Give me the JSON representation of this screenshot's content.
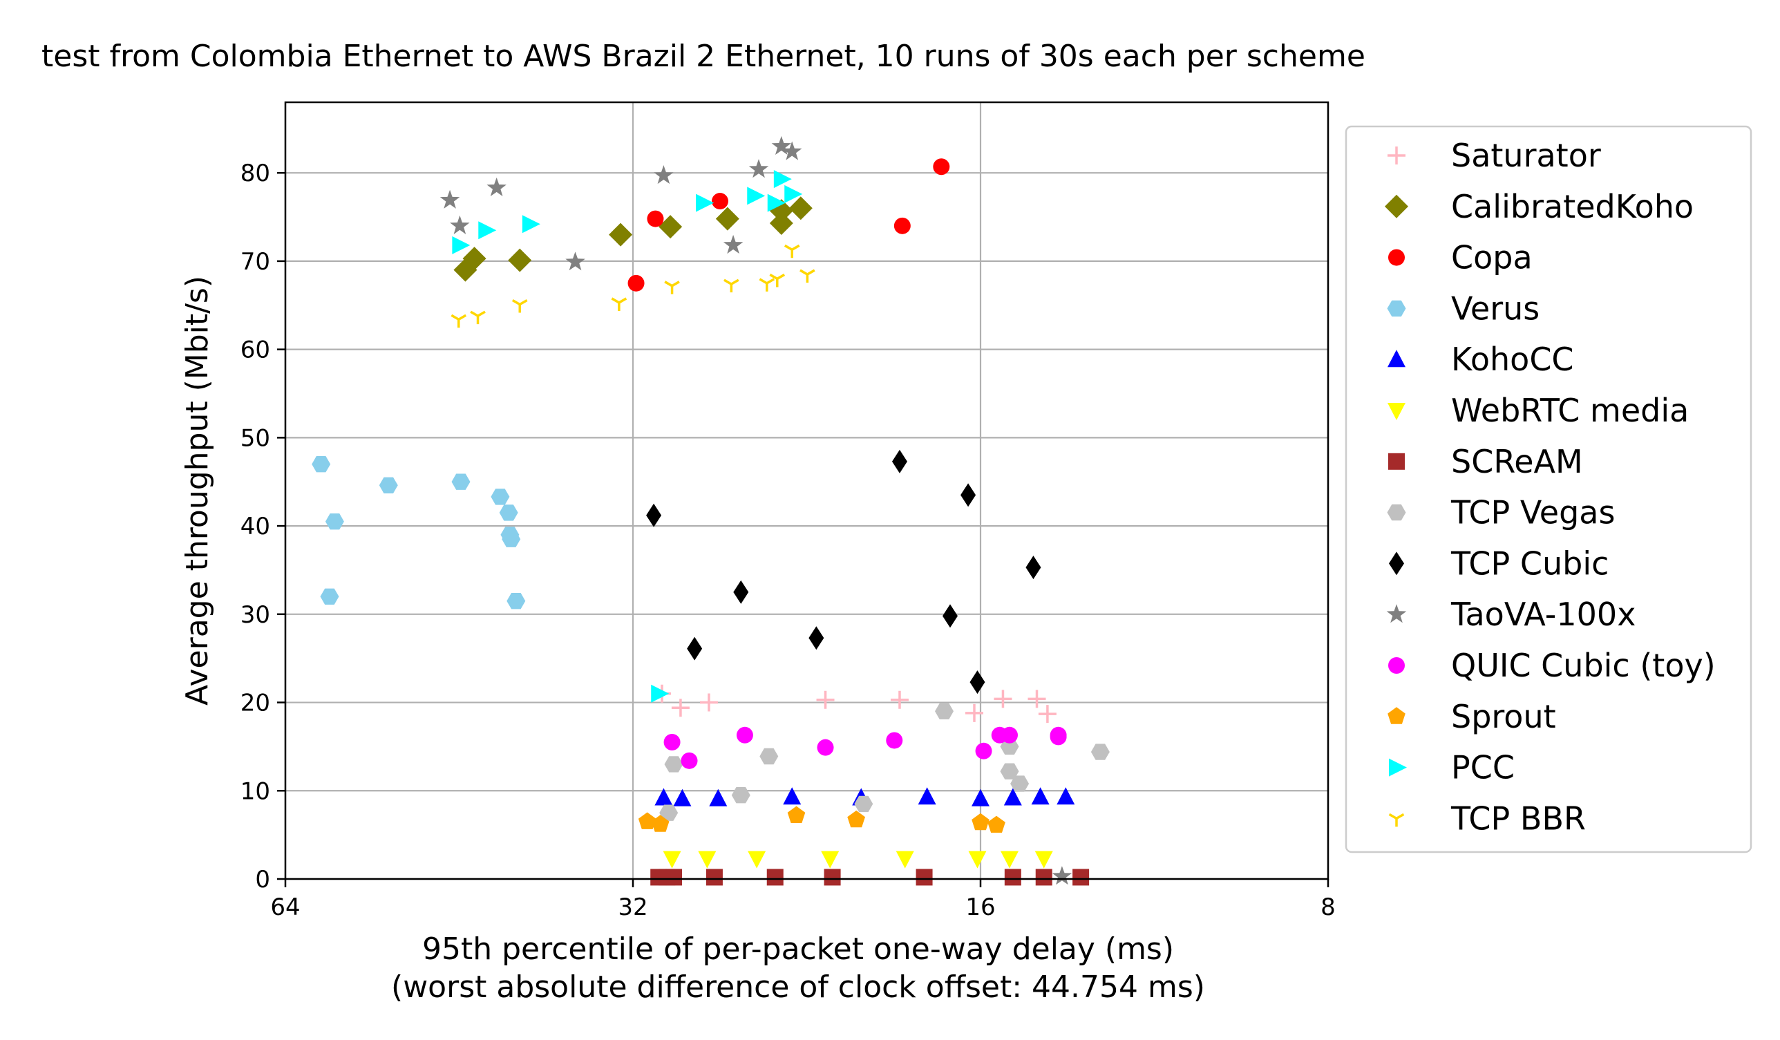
{
  "chart_data": {
    "type": "scatter",
    "title": "test from Colombia Ethernet to AWS Brazil 2 Ethernet, 10 runs of 30s each per scheme",
    "xlabel": "95th percentile of per-packet one-way delay (ms)",
    "xlabel_sub": "(worst absolute difference of clock offset: 44.754 ms)",
    "ylabel": "Average throughput (Mbit/s)",
    "x_scale": "log2",
    "x_inverted": true,
    "xlim": [
      64,
      8
    ],
    "ylim": [
      0,
      88
    ],
    "x_ticks": [
      64,
      32,
      16,
      8
    ],
    "y_ticks": [
      0,
      10,
      20,
      30,
      40,
      50,
      60,
      70,
      80
    ],
    "grid": true,
    "legend_position": "outside-right",
    "series": [
      {
        "name": "Saturator",
        "marker": "plus",
        "color": "#ffb6c1",
        "points": [
          [
            30.2,
            21
          ],
          [
            29.1,
            19.4
          ],
          [
            27.5,
            20
          ],
          [
            21.8,
            20.3
          ],
          [
            18.8,
            20.3
          ],
          [
            16.2,
            18.8
          ],
          [
            15.3,
            20.4
          ],
          [
            14.3,
            20.4
          ],
          [
            14.0,
            18.7
          ]
        ]
      },
      {
        "name": "CalibratedKoho",
        "marker": "diamond",
        "color": "#808000",
        "points": [
          [
            44.7,
            69
          ],
          [
            43.9,
            70.3
          ],
          [
            40.1,
            70.1
          ],
          [
            32.8,
            73
          ],
          [
            29.7,
            73.9
          ],
          [
            26.5,
            74.8
          ],
          [
            23.8,
            74.3
          ],
          [
            23.8,
            75.7
          ],
          [
            22.9,
            76
          ]
        ]
      },
      {
        "name": "Copa",
        "marker": "circle",
        "color": "#ff0000",
        "points": [
          [
            31.8,
            67.5
          ],
          [
            30.6,
            74.8
          ],
          [
            26.9,
            76.8
          ],
          [
            17.3,
            80.7
          ],
          [
            18.7,
            74
          ]
        ]
      },
      {
        "name": "Verus",
        "marker": "hexagon",
        "color": "#87ceeb",
        "points": [
          [
            59.6,
            47
          ],
          [
            58.0,
            40.5
          ],
          [
            58.6,
            32
          ],
          [
            52.1,
            44.6
          ],
          [
            45.1,
            45
          ],
          [
            41.7,
            43.3
          ],
          [
            41.0,
            41.5
          ],
          [
            40.9,
            39
          ],
          [
            40.8,
            38.5
          ],
          [
            40.4,
            31.5
          ]
        ]
      },
      {
        "name": "KohoCC",
        "marker": "triangle-up",
        "color": "#0000ff",
        "points": [
          [
            30.1,
            9.2
          ],
          [
            29.0,
            9.1
          ],
          [
            27.0,
            9.1
          ],
          [
            23.3,
            9.3
          ],
          [
            20.3,
            9.2
          ],
          [
            17.8,
            9.3
          ],
          [
            16.0,
            9.1
          ],
          [
            15.0,
            9.2
          ],
          [
            14.2,
            9.3
          ],
          [
            13.5,
            9.3
          ]
        ]
      },
      {
        "name": "WebRTC media",
        "marker": "triangle-down",
        "color": "#ffff00",
        "points": [
          [
            29.6,
            2.3
          ],
          [
            27.6,
            2.3
          ],
          [
            25.0,
            2.3
          ],
          [
            21.6,
            2.3
          ],
          [
            18.6,
            2.3
          ],
          [
            16.1,
            2.3
          ],
          [
            15.1,
            2.3
          ],
          [
            14.1,
            2.3
          ]
        ]
      },
      {
        "name": "SCReAM",
        "marker": "square",
        "color": "#a52a2a",
        "points": [
          [
            30.4,
            0.2
          ],
          [
            29.9,
            0.2
          ],
          [
            29.5,
            0.2
          ],
          [
            27.2,
            0.2
          ],
          [
            24.1,
            0.2
          ],
          [
            21.5,
            0.2
          ],
          [
            17.9,
            0.2
          ],
          [
            15.0,
            0.2
          ],
          [
            14.1,
            0.2
          ],
          [
            13.1,
            0.2
          ]
        ]
      },
      {
        "name": "TCP Vegas",
        "marker": "hexagon",
        "color": "#c0c0c0",
        "points": [
          [
            29.8,
            7.5
          ],
          [
            29.5,
            13
          ],
          [
            25.8,
            9.5
          ],
          [
            24.4,
            13.9
          ],
          [
            20.2,
            8.5
          ],
          [
            17.2,
            19
          ],
          [
            15.1,
            15
          ],
          [
            15.1,
            12.2
          ],
          [
            14.8,
            10.8
          ],
          [
            12.6,
            14.4
          ]
        ]
      },
      {
        "name": "TCP Cubic",
        "marker": "thin-diamond",
        "color": "#000000",
        "points": [
          [
            30.7,
            41.2
          ],
          [
            28.3,
            26.1
          ],
          [
            25.8,
            32.5
          ],
          [
            22.2,
            27.3
          ],
          [
            18.8,
            47.3
          ],
          [
            16.4,
            43.5
          ],
          [
            17.0,
            29.8
          ],
          [
            16.1,
            22.3
          ],
          [
            14.4,
            35.3
          ]
        ]
      },
      {
        "name": "TaoVA-100x",
        "marker": "star",
        "color": "#808080",
        "points": [
          [
            46.1,
            76.9
          ],
          [
            45.2,
            74
          ],
          [
            42.0,
            78.3
          ],
          [
            35.9,
            69.9
          ],
          [
            30.1,
            79.7
          ],
          [
            26.2,
            71.8
          ],
          [
            24.9,
            80.4
          ],
          [
            23.8,
            83
          ],
          [
            23.3,
            82.4
          ],
          [
            13.6,
            0.3
          ]
        ]
      },
      {
        "name": "QUIC Cubic (toy)",
        "marker": "circle",
        "color": "#ff00ff",
        "points": [
          [
            29.6,
            15.5
          ],
          [
            28.6,
            13.4
          ],
          [
            25.6,
            16.3
          ],
          [
            21.8,
            14.9
          ],
          [
            19.0,
            15.7
          ],
          [
            15.9,
            14.5
          ],
          [
            15.4,
            16.3
          ],
          [
            15.1,
            16.3
          ],
          [
            13.7,
            16.3
          ],
          [
            13.7,
            16.1
          ]
        ]
      },
      {
        "name": "Sprout",
        "marker": "pentagon",
        "color": "#ffa500",
        "points": [
          [
            31.1,
            6.5
          ],
          [
            30.3,
            6.2
          ],
          [
            23.1,
            7.2
          ],
          [
            20.5,
            6.7
          ],
          [
            16.0,
            6.4
          ],
          [
            15.5,
            6.1
          ]
        ]
      },
      {
        "name": "PCC",
        "marker": "triangle-right",
        "color": "#00ffff",
        "points": [
          [
            45.2,
            71.8
          ],
          [
            42.9,
            73.5
          ],
          [
            39.3,
            74.2
          ],
          [
            30.4,
            21
          ],
          [
            27.8,
            76.6
          ],
          [
            25.1,
            77.4
          ],
          [
            24.1,
            76.6
          ],
          [
            23.8,
            79.3
          ],
          [
            23.3,
            77.6
          ]
        ]
      },
      {
        "name": "TCP BBR",
        "marker": "tri-down",
        "color": "#ffd700",
        "points": [
          [
            45.3,
            63.4
          ],
          [
            43.6,
            63.8
          ],
          [
            40.1,
            65.1
          ],
          [
            32.9,
            65.3
          ],
          [
            29.6,
            67.2
          ],
          [
            26.3,
            67.4
          ],
          [
            24.5,
            67.5
          ],
          [
            24.0,
            68
          ],
          [
            23.3,
            71.3
          ],
          [
            22.6,
            68.5
          ]
        ]
      }
    ]
  }
}
